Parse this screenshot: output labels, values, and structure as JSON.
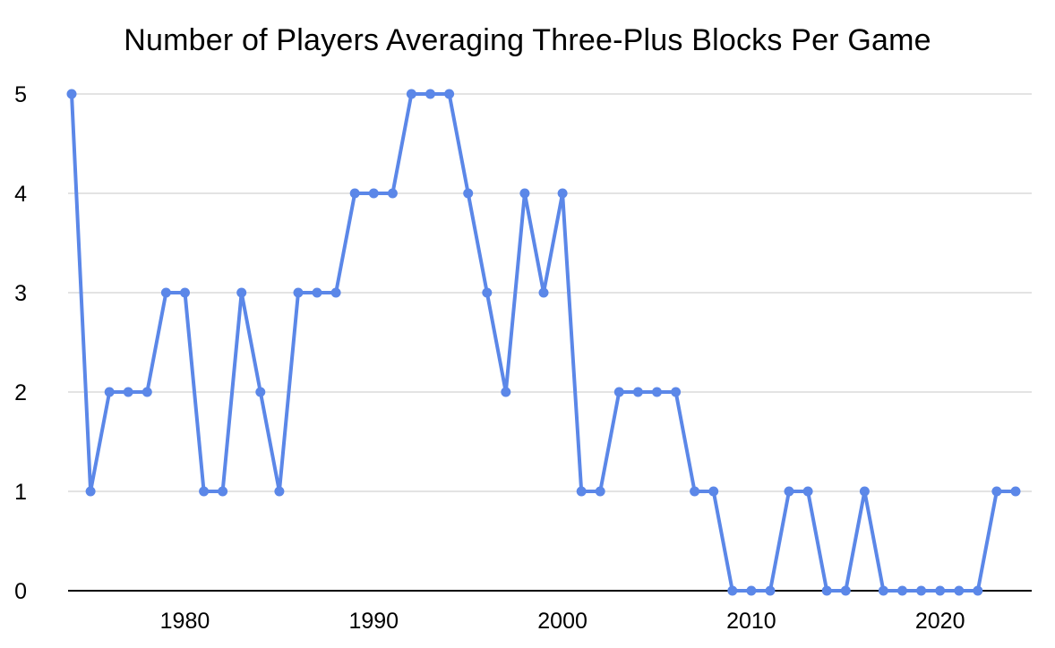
{
  "title": "Number of Players Averaging Three-Plus Blocks Per Game",
  "colors": {
    "line": "#5b87e8",
    "grid": "#dadada",
    "axis": "#000000",
    "text": "#000000",
    "background": "#ffffff"
  },
  "chart_data": {
    "type": "line",
    "title": "Number of Players Averaging Three-Plus Blocks Per Game",
    "x": [
      1974,
      1975,
      1976,
      1977,
      1978,
      1979,
      1980,
      1981,
      1982,
      1983,
      1984,
      1985,
      1986,
      1987,
      1988,
      1989,
      1990,
      1991,
      1992,
      1993,
      1994,
      1995,
      1996,
      1997,
      1998,
      1999,
      2000,
      2001,
      2002,
      2003,
      2004,
      2005,
      2006,
      2007,
      2008,
      2009,
      2010,
      2011,
      2012,
      2013,
      2014,
      2015,
      2016,
      2017,
      2018,
      2019,
      2020,
      2021,
      2022,
      2023,
      2024
    ],
    "values": [
      5,
      1,
      2,
      2,
      2,
      3,
      3,
      1,
      1,
      3,
      2,
      1,
      3,
      3,
      3,
      4,
      4,
      4,
      5,
      5,
      5,
      4,
      3,
      2,
      4,
      3,
      4,
      1,
      1,
      2,
      2,
      2,
      2,
      1,
      1,
      0,
      0,
      0,
      1,
      1,
      0,
      0,
      1,
      0,
      0,
      0,
      0,
      0,
      0,
      1,
      1
    ],
    "xticks": [
      1980,
      1990,
      2000,
      2010,
      2020
    ],
    "yticks": [
      0,
      1,
      2,
      3,
      4,
      5
    ],
    "ylim": [
      0,
      5
    ],
    "xlabel": "",
    "ylabel": "",
    "legend": "none",
    "grid": "horizontal",
    "marker": "circle",
    "line_color": "#5b87e8"
  }
}
